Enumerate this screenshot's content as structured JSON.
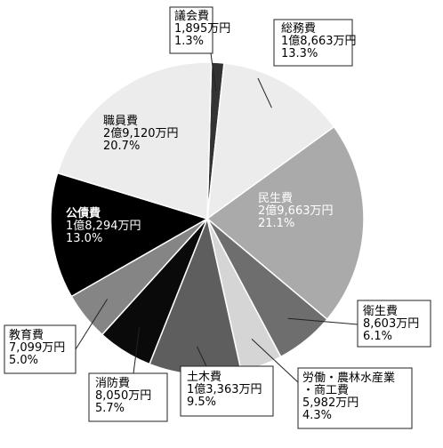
{
  "chart_data": {
    "type": "pie",
    "slices": [
      {
        "name": "議会費",
        "amount": "1,895万円",
        "percent": "1.3%",
        "value": 1.3,
        "color": "#333333"
      },
      {
        "name": "総務費",
        "amount": "1億8,663万円",
        "percent": "13.3%",
        "value": 13.3,
        "color": "#ececec"
      },
      {
        "name": "民生費",
        "amount": "2億9,663万円",
        "percent": "21.1%",
        "value": 21.1,
        "color": "#aaaaaa"
      },
      {
        "name": "衛生費",
        "amount": "8,603万円",
        "percent": "6.1%",
        "value": 6.1,
        "color": "#6e6e6e"
      },
      {
        "name": "労働・農林水産業・商工費",
        "name_lines": [
          "労働・農林水産業",
          "・商工費"
        ],
        "amount": "5,982万円",
        "percent": "4.3%",
        "value": 4.3,
        "color": "#d5d5d5"
      },
      {
        "name": "土木費",
        "amount": "1億3,363万円",
        "percent": "9.5%",
        "value": 9.5,
        "color": "#5e5e5e"
      },
      {
        "name": "消防費",
        "amount": "8,050万円",
        "percent": "5.7%",
        "value": 5.7,
        "color": "#0a0a0a"
      },
      {
        "name": "教育費",
        "amount": "7,099万円",
        "percent": "5.0%",
        "value": 5.0,
        "color": "#858585"
      },
      {
        "name": "公債費",
        "amount": "1億8,294万円",
        "percent": "13.0%",
        "value": 13.0,
        "color": "#000000"
      },
      {
        "name": "職員費",
        "amount": "2億9,120万円",
        "percent": "20.7%",
        "value": 20.7,
        "color": "#ececec"
      }
    ]
  }
}
